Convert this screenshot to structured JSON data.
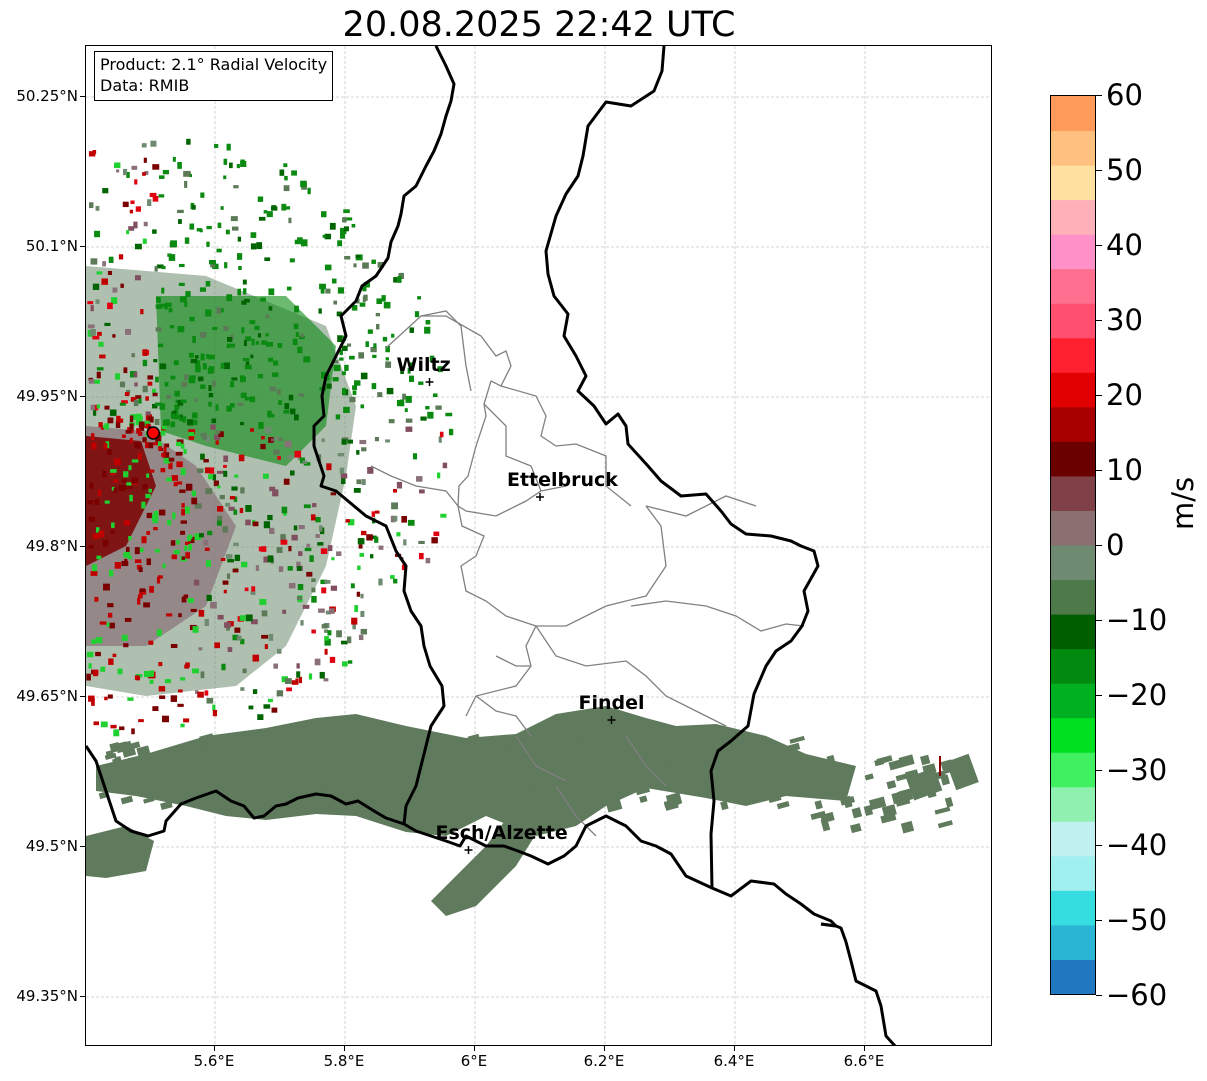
{
  "title": "20.08.2025 22:42 UTC",
  "info_box": {
    "product": "Product: 2.1° Radial Velocity",
    "data": "Data: RMIB"
  },
  "latitude_ticks": [
    "50.25°N",
    "50.1°N",
    "49.95°N",
    "49.8°N",
    "49.65°N",
    "49.5°N",
    "49.35°N"
  ],
  "longitude_ticks": [
    "5.6°E",
    "5.8°E",
    "6°E",
    "6.2°E",
    "6.4°E",
    "6.6°E"
  ],
  "cities": [
    {
      "name": "Wiltz",
      "lon": 5.93,
      "lat": 49.965
    },
    {
      "name": "Ettelbruck",
      "lon": 6.1,
      "lat": 49.85
    },
    {
      "name": "Findel",
      "lon": 6.21,
      "lat": 49.627
    },
    {
      "name": "Esch/Alzette",
      "lon": 5.99,
      "lat": 49.497
    }
  ],
  "radar_site": {
    "lon": 5.505,
    "lat": 49.914
  },
  "colorbar": {
    "unit": "m/s",
    "ticks": [
      "60",
      "50",
      "40",
      "30",
      "20",
      "10",
      "0",
      "−10",
      "−20",
      "−30",
      "−40",
      "−50",
      "−60"
    ],
    "min": -60,
    "max": 60,
    "colors": [
      "#1f78c0",
      "#2ab5d5",
      "#35dde0",
      "#9ff0ee",
      "#c0f0f0",
      "#90f0b0",
      "#40f060",
      "#00e020",
      "#00b020",
      "#008a10",
      "#005e00",
      "#4d7a48",
      "#6e8a70",
      "#8a7070",
      "#804048",
      "#6a0000",
      "#a80000",
      "#e00000",
      "#ff2030",
      "#ff5070",
      "#ff7090",
      "#ff90c8",
      "#ffb0b8",
      "#ffe0a0",
      "#ffc080",
      "#ff9a5a"
    ]
  },
  "map": {
    "lon_range": [
      5.4,
      6.8
    ],
    "lat_range": [
      49.3,
      50.3
    ]
  }
}
